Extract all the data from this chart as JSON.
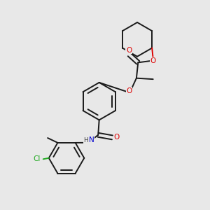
{
  "bg": "#e8e8e8",
  "lc": "#1a1a1a",
  "oc": "#dd0000",
  "nc": "#0000cc",
  "clc": "#22aa22",
  "lw": 1.4,
  "figsize": [
    3.0,
    3.0
  ],
  "dpi": 100,
  "xlim": [
    0,
    10
  ],
  "ylim": [
    0,
    10
  ]
}
